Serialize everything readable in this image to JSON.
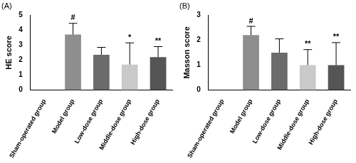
{
  "chart_data": [
    {
      "type": "bar",
      "title": "(A)",
      "y_label": "HE score",
      "categories": [
        "Sham-operated group",
        "Model group",
        "Low-dose group",
        "Middle-dose group",
        "High-dose group"
      ],
      "values": [
        0,
        3.7,
        2.35,
        1.7,
        2.2
      ],
      "errors": [
        0,
        0.75,
        0.5,
        1.45,
        0.7
      ],
      "significance": [
        null,
        "#",
        null,
        "*",
        "**"
      ],
      "colors": [
        "#7f7f7f",
        "#8e8e8e",
        "#6b6b6b",
        "#c9c9c9",
        "#555555"
      ],
      "ylim": [
        0,
        5
      ],
      "yticks": [
        0,
        1,
        2,
        3,
        4,
        5
      ],
      "grid": false
    },
    {
      "type": "bar",
      "title": "(B)",
      "y_label": "Masson score",
      "categories": [
        "Sham-operated group",
        "Model group",
        "Low-dose group",
        "Middle-dose group",
        "High-dose group"
      ],
      "values": [
        0,
        2.2,
        1.5,
        1.0,
        1.0
      ],
      "errors": [
        0,
        0.35,
        0.55,
        0.62,
        0.9
      ],
      "significance": [
        null,
        "#",
        null,
        "**",
        "**"
      ],
      "colors": [
        "#7f7f7f",
        "#8e8e8e",
        "#6b6b6b",
        "#c9c9c9",
        "#555555"
      ],
      "ylim": [
        0,
        3
      ],
      "yticks": [
        0,
        1,
        2,
        3
      ],
      "grid": false
    }
  ]
}
